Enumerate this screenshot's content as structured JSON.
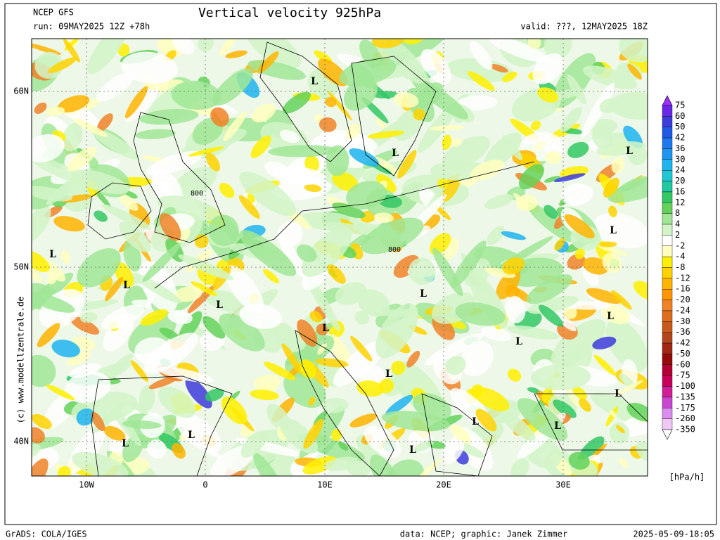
{
  "header": {
    "model": "NCEP GFS",
    "run": "run: 09MAY2025 12Z +78h",
    "title": "Vertical velocity 925hPa",
    "valid": "valid: ???, 12MAY2025 18Z"
  },
  "map": {
    "lat_labels": [
      "60N",
      "50N",
      "40N"
    ],
    "lon_labels": [
      "10W",
      "0",
      "10E",
      "20E",
      "30E"
    ],
    "lows": [
      "L",
      "L",
      "L",
      "L",
      "L",
      "L",
      "L",
      "L",
      "L",
      "L",
      "L",
      "L",
      "L",
      "L",
      "L",
      "L",
      "L",
      "L"
    ],
    "contour_labels": [
      "800",
      "800"
    ],
    "copyright": "(c) www.modellzentrale.de"
  },
  "colorbar": {
    "levels": [
      75,
      60,
      50,
      42,
      36,
      30,
      24,
      20,
      16,
      12,
      8,
      4,
      2,
      -2,
      -4,
      -8,
      -12,
      -16,
      -20,
      -24,
      -30,
      -36,
      -42,
      -50,
      -60,
      -75,
      -100,
      -135,
      -175,
      -260,
      -350
    ],
    "colors": [
      "#9b30ff",
      "#6a28e6",
      "#3c3cdc",
      "#1e5ae6",
      "#1e78f0",
      "#1e96f0",
      "#1eb4f0",
      "#1ec8d2",
      "#1ec8a0",
      "#32c864",
      "#64d25a",
      "#a0e696",
      "#d2f5c8",
      "#ffffff",
      "#ffffbe",
      "#fff000",
      "#ffd200",
      "#ffb400",
      "#ff9600",
      "#f08228",
      "#dc6e1e",
      "#c85a1e",
      "#b4461e",
      "#a02814",
      "#960a0a",
      "#b40032",
      "#c8005a",
      "#d21e96",
      "#c846d2",
      "#dc8cf0",
      "#f0c8f5",
      "#ffffff"
    ],
    "unit": "[hPa/h]"
  },
  "footer": {
    "left": "GrADS: COLA/IGES",
    "credit": "data: NCEP; graphic: Janek Zimmer",
    "timestamp": "2025-05-09-18:05"
  }
}
